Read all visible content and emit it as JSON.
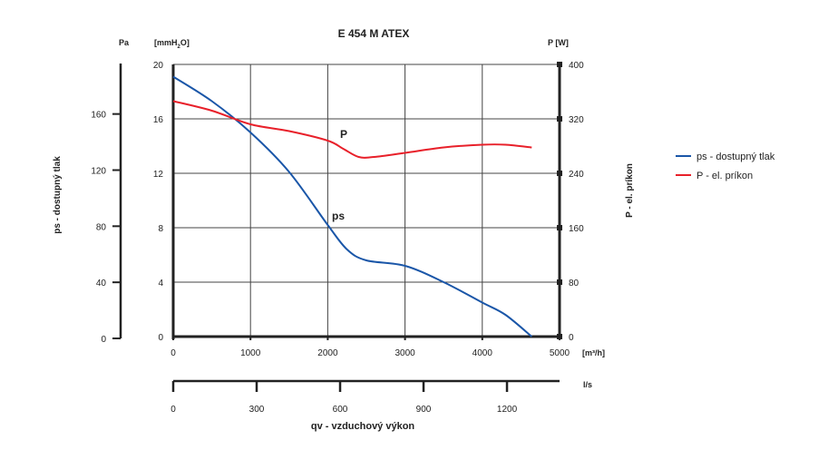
{
  "chart_data": {
    "type": "line",
    "title": "E 454 M  ATEX",
    "xlabel": "qv - vzduchový výkon",
    "x_unit": "[m³/h]",
    "x2_unit": "l/s",
    "xlim": [
      0,
      5000
    ],
    "xticks": [
      0,
      1000,
      2000,
      3000,
      4000,
      5000
    ],
    "x2lim": [
      0,
      1389
    ],
    "x2ticks": [
      0,
      300,
      600,
      900,
      1200
    ],
    "y_left_unit": "[mmH2O]",
    "y_left_unit_main": "[mmH",
    "y_left_unit_sub": "2",
    "y_left_unit_end": "O]",
    "ylim": [
      0,
      20
    ],
    "yticks": [
      0,
      4,
      8,
      12,
      16,
      20
    ],
    "y_pa_unit": "Pa",
    "y_pa_label": "ps - dostupný tlak",
    "y_pa_ticks": [
      0,
      40,
      80,
      120,
      160
    ],
    "y_pa_lim": [
      0,
      196
    ],
    "y_right_unit": "P [W]",
    "y_right_label": "P - el. príkon",
    "y_right_lim": [
      0,
      400
    ],
    "y_right_ticks": [
      0,
      80,
      160,
      240,
      320,
      400
    ],
    "grid": true,
    "legend_position": "right",
    "series": [
      {
        "name": "ps - dostupný tlak",
        "label": "ps",
        "color": "#1a56a8",
        "axis": "left",
        "x": [
          0,
          500,
          1000,
          1500,
          2000,
          2250,
          2500,
          3000,
          3500,
          4000,
          4300,
          4640
        ],
        "values": [
          19.1,
          17.3,
          15.0,
          12.1,
          8.2,
          6.4,
          5.6,
          5.2,
          4.0,
          2.5,
          1.6,
          0
        ]
      },
      {
        "name": "P - el. príkon",
        "label": "P",
        "color": "#e8202a",
        "axis": "right",
        "x": [
          0,
          500,
          1000,
          1500,
          2000,
          2200,
          2400,
          2600,
          3000,
          3500,
          4000,
          4300,
          4640
        ],
        "values": [
          346,
          332,
          312,
          302,
          288,
          276,
          264,
          264,
          270,
          278,
          282,
          282,
          278
        ]
      }
    ]
  }
}
